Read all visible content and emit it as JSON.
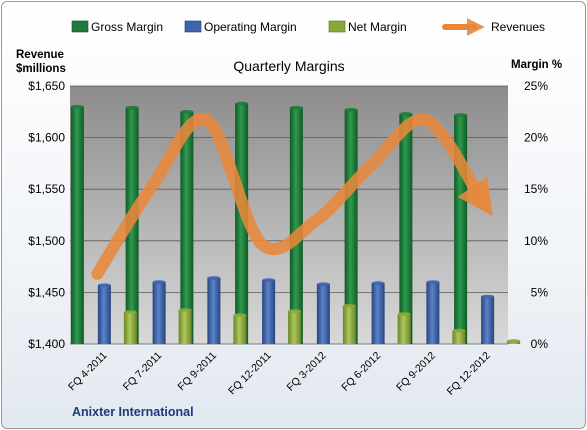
{
  "chart_data": {
    "type": "bar",
    "title": "Quarterly Margins",
    "categories": [
      "FQ 4-2011",
      "FQ 7-2011",
      "FQ 9-2011",
      "FQ 12-2011",
      "FQ 3-2012",
      "FQ 6-2012",
      "FQ 9-2012",
      "FQ 12-2012"
    ],
    "series": [
      {
        "name": "Gross Margin",
        "axis": "right",
        "type": "bar",
        "color": "#1f7a3a",
        "values": [
          23.0,
          22.9,
          22.5,
          23.3,
          22.9,
          22.7,
          22.3,
          22.2
        ]
      },
      {
        "name": "Operating Margin",
        "axis": "right",
        "type": "bar",
        "color": "#3f63ad",
        "values": [
          5.7,
          6.0,
          6.4,
          6.2,
          5.8,
          5.9,
          6.0,
          4.6
        ]
      },
      {
        "name": "Net Margin",
        "axis": "right",
        "type": "bar",
        "color": "#8aa83a",
        "values": [
          3.1,
          3.3,
          2.8,
          3.2,
          3.7,
          2.9,
          1.3,
          0.3
        ]
      },
      {
        "name": "Revenues",
        "axis": "left",
        "type": "line",
        "color": "#e8873a",
        "values": [
          1468,
          1553,
          1617,
          1497,
          1520,
          1573,
          1617,
          1541
        ]
      }
    ],
    "left_axis": {
      "label_line1": "Revenue",
      "label_line2": "$millions",
      "min": 1400,
      "max": 1650,
      "step": 50,
      "ticks": [
        "$1,400",
        "$1,450",
        "$1,500",
        "$1,550",
        "$1,600",
        "$1,650"
      ]
    },
    "right_axis": {
      "label": "Margin %",
      "min": 0,
      "max": 25,
      "step": 5,
      "ticks": [
        "0%",
        "5%",
        "10%",
        "15%",
        "20%",
        "25%"
      ]
    },
    "legend_position": "top",
    "grid": true,
    "footer": "Anixter International",
    "colors": {
      "plot_bg_top": "#8c8c8c",
      "plot_bg_bottom": "#d9d9d9",
      "gridline": "#5a5a5a"
    }
  }
}
